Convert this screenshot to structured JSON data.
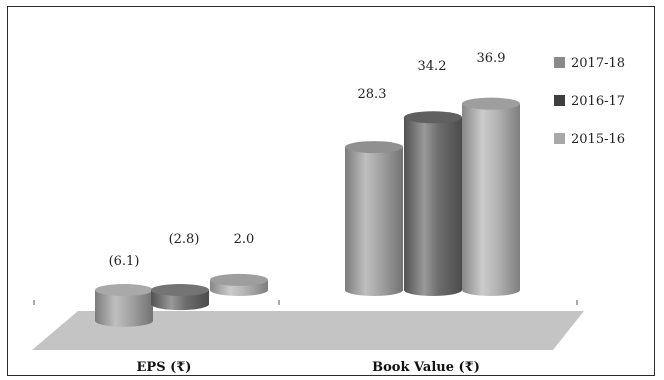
{
  "chart_data": {
    "type": "bar",
    "style": "3d-cylinder",
    "categories": [
      "EPS (₹)",
      "Book Value (₹)"
    ],
    "series": [
      {
        "name": "2015-16",
        "values": [
          -6.1,
          28.3
        ],
        "color": "#a4a4a4"
      },
      {
        "name": "2016-17",
        "values": [
          -2.8,
          34.2
        ],
        "color": "#6d6d6d"
      },
      {
        "name": "2017-18",
        "values": [
          2.0,
          36.9
        ],
        "color": "#b4b4b4"
      }
    ],
    "data_labels": [
      [
        "(6.1)",
        "(2.8)",
        "2.0"
      ],
      [
        "28.3",
        "34.2",
        "36.9"
      ]
    ],
    "legend": {
      "placement": "right",
      "items": [
        {
          "label": "2017-18",
          "color": "#8a8a8a"
        },
        {
          "label": "2016-17",
          "color": "#3e3e3e"
        },
        {
          "label": "2015-16",
          "color": "#a8a8a8"
        }
      ]
    },
    "title": "",
    "xlabel": "",
    "ylabel": "",
    "grid": false,
    "floor_color": "#c4c4c4"
  }
}
